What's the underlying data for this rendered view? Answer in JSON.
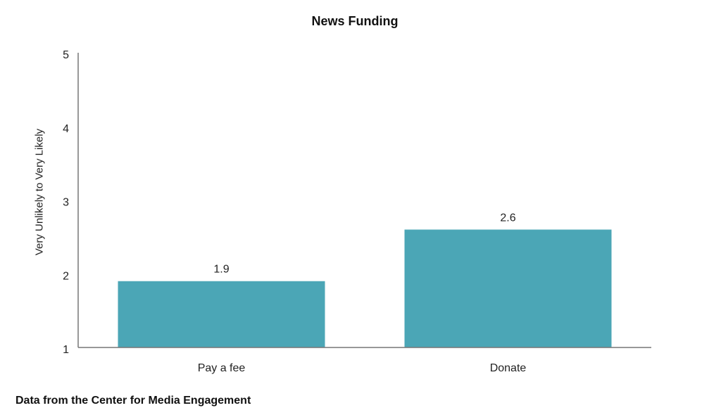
{
  "chart_data": {
    "type": "bar",
    "title": "News Funding",
    "xlabel": "",
    "ylabel": "Very Unlikely to Very Likely",
    "categories": [
      "Pay a fee",
      "Donate"
    ],
    "values": [
      1.9,
      2.6
    ],
    "data_labels": [
      "1.9",
      "2.6"
    ],
    "ylim": [
      1,
      5
    ],
    "yticks": [
      1,
      2,
      3,
      4,
      5
    ],
    "grid": false,
    "legend": null,
    "bar_color": "#4BA6B6",
    "footer": "Data from the Center for Media Engagement"
  }
}
